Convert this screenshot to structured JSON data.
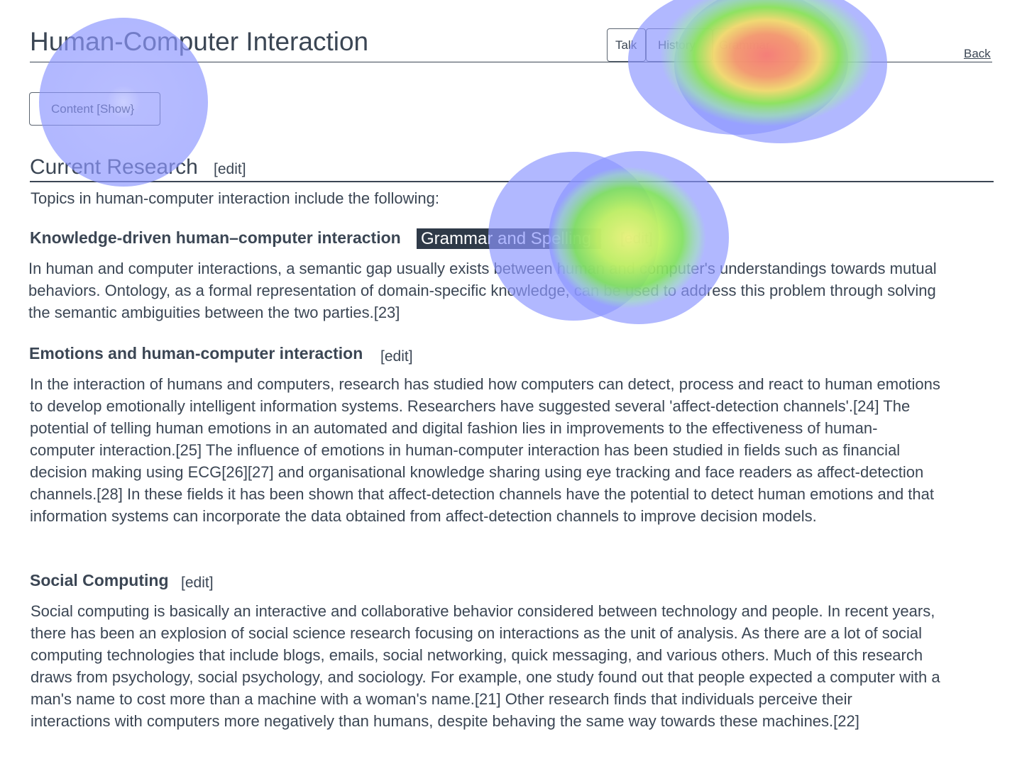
{
  "header": {
    "title": "Human-Computer Interaction",
    "tabs": [
      "Talk",
      "History"
    ],
    "select_value": "Grammar",
    "select_chevron": "v",
    "back_label": "Back"
  },
  "content_toggle": "Content [Show}",
  "section": {
    "title": "Current Research",
    "edit": "[edit]",
    "intro": "Topics in human-computer interaction include the following:"
  },
  "subsections": [
    {
      "title": "Knowledge-driven human–computer interaction",
      "tag": "Grammar and Spelling",
      "edit": "[edit]",
      "lines": [
        "In human and computer interactions, a semantic gap usually exists between human and computer's understandings towards mutual",
        "behaviors. Ontology, as a formal representation of domain-specific knowledge, can be used to address this problem through solving",
        "the semantic ambiguities between the two parties.[23]"
      ]
    },
    {
      "title": "Emotions and human-computer interaction",
      "edit": "[edit]",
      "lines": [
        "In the interaction of humans and computers, research has studied how computers can detect, process and react to human emotions",
        "to develop emotionally intelligent information systems. Researchers have suggested several 'affect-detection channels'.[24] The",
        "potential of telling human emotions in an automated and digital fashion lies in improvements to the effectiveness of human-",
        "computer interaction.[25] The influence of emotions in human-computer interaction has been studied in fields such as financial",
        "decision making using ECG[26][27] and organisational knowledge sharing using eye tracking and face readers as affect-detection",
        "channels.[28] In these fields it has been shown that affect-detection channels have the potential to detect human emotions and that",
        "information systems can incorporate the data obtained from affect-detection channels to improve decision models."
      ]
    },
    {
      "title": "Social Computing",
      "edit": "[edit]",
      "lines": [
        "Social computing is basically an interactive and collaborative behavior considered between technology and people. In recent years,",
        "there has been an explosion of social science research focusing on interactions as the unit of analysis. As there are a lot of social",
        "computing technologies that include blogs, emails, social networking, quick messaging, and various others. Much of this research",
        "draws from psychology, social psychology, and sociology. For example, one study found out that people expected a computer with a",
        "man's name to cost more than a machine with a woman's name.[21] Other research finds that individuals perceive their",
        "interactions with computers more negatively than humans, despite behaving the same way towards these machines.[22]"
      ]
    }
  ],
  "colors": {
    "text": "#3b4654",
    "chip_bg": "#2f3a48",
    "heat_low": "#8c96ff",
    "heat_mid": "#7cf000",
    "heat_high": "#ff6a55"
  }
}
